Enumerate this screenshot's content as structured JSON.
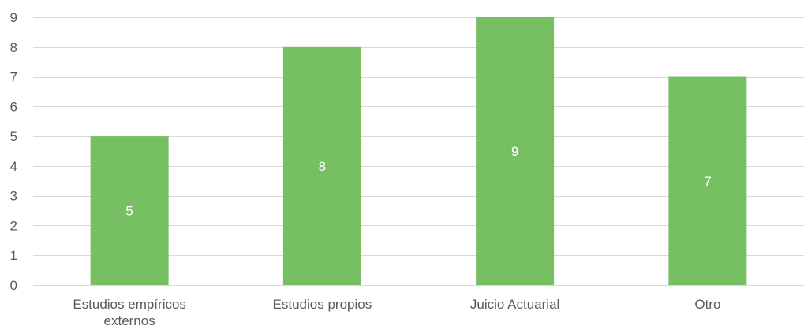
{
  "chart_data": {
    "type": "bar",
    "categories": [
      [
        "Estudios empíricos",
        "externos"
      ],
      [
        "Estudios propios"
      ],
      [
        "Juicio Actuarial"
      ],
      [
        "Otro"
      ]
    ],
    "values": [
      5,
      8,
      9,
      7
    ],
    "data_labels": [
      "5",
      "8",
      "9",
      "7"
    ],
    "ylim": [
      0,
      9
    ],
    "yticks": [
      0,
      1,
      2,
      3,
      4,
      5,
      6,
      7,
      8,
      9
    ],
    "grid": true,
    "legend": "none",
    "colors": {
      "bar": "#76C063",
      "grid": "#D9D9D9",
      "tick_label": "#595959",
      "data_label": "#FFFFFF"
    }
  }
}
